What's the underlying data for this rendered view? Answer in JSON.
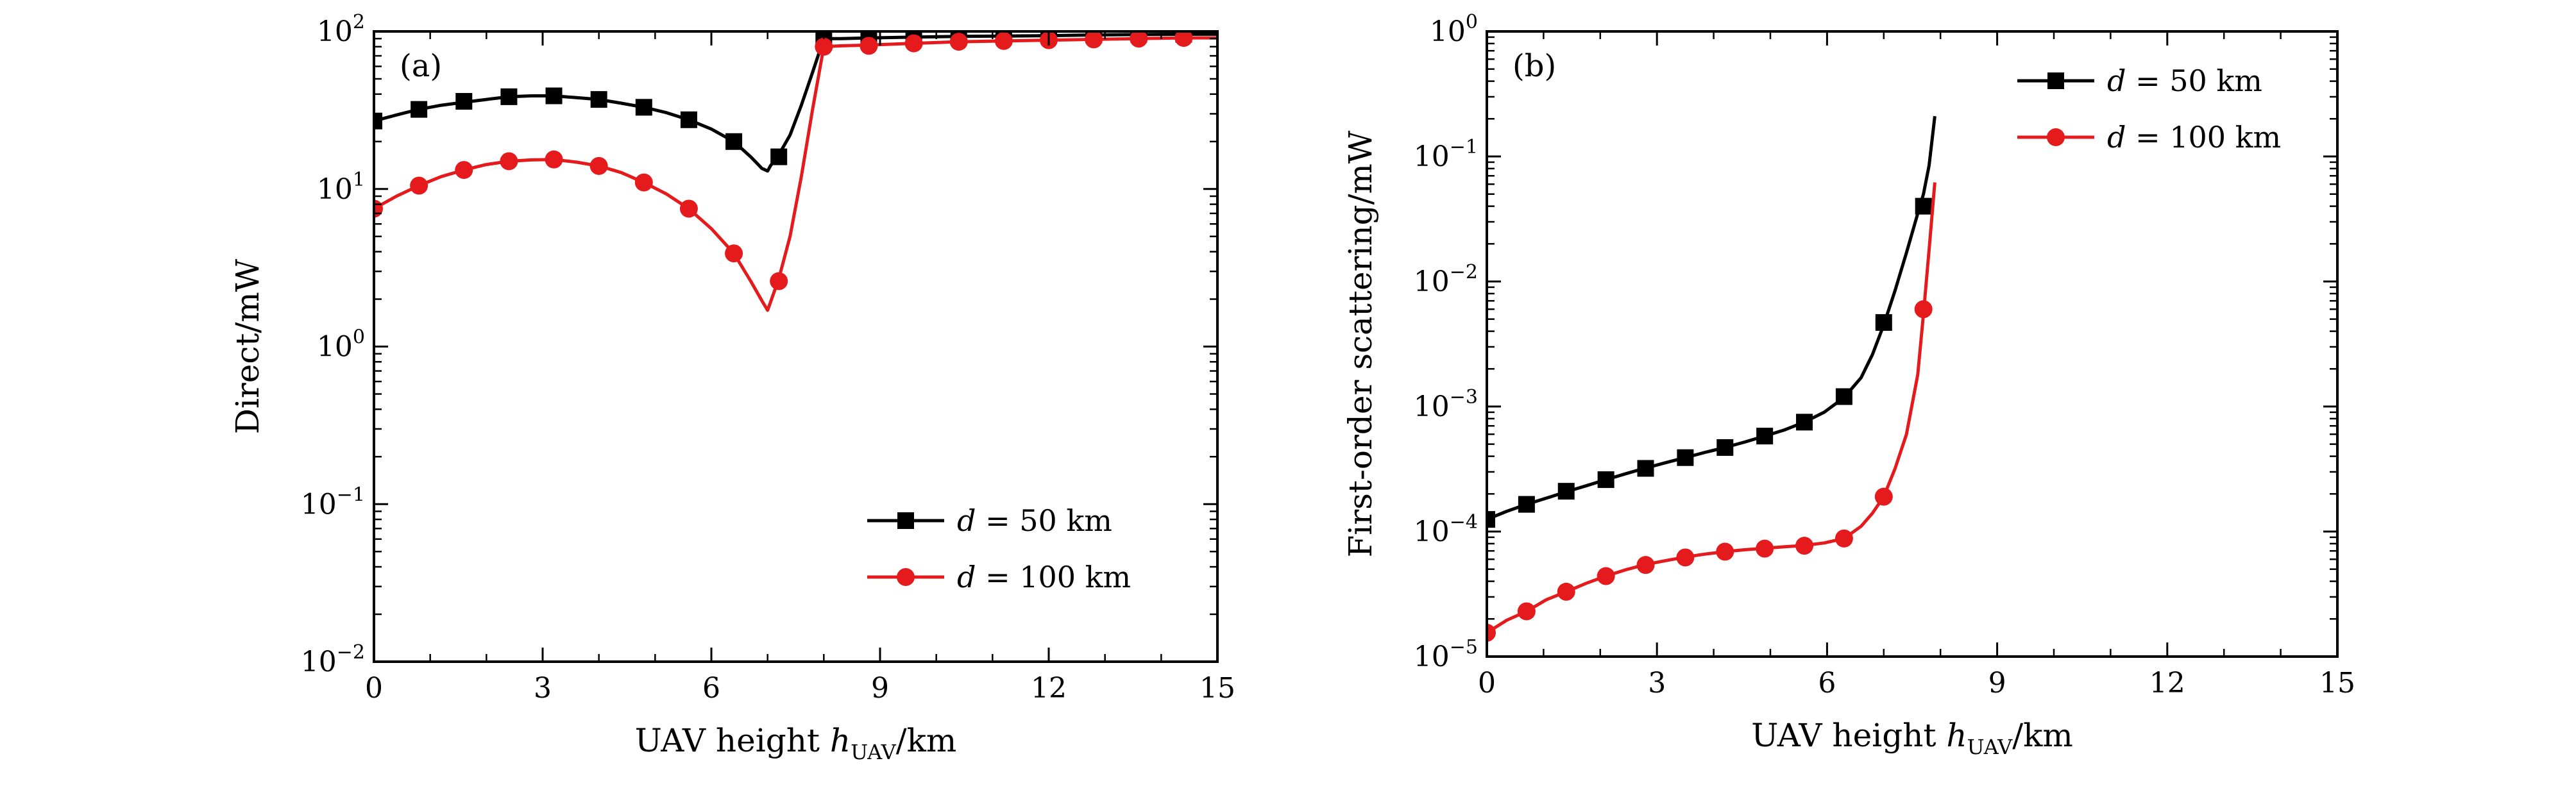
{
  "chart_data": [
    {
      "type": "line",
      "panel_label": "(a)",
      "xlabel": "UAV height h_UAV/km",
      "xlabel_parts": {
        "pre": "UAV height ",
        "var": "h",
        "sub": "UAV",
        "post": "/km"
      },
      "ylabel": "Direct/mW",
      "xlim": [
        0,
        15
      ],
      "ylim": [
        0.01,
        100
      ],
      "y_scale": "log",
      "grid": false,
      "legend_position": "lower-right",
      "x_ticks": [
        {
          "value": 0,
          "label": "0"
        },
        {
          "value": 3,
          "label": "3"
        },
        {
          "value": 6,
          "label": "6"
        },
        {
          "value": 9,
          "label": "9"
        },
        {
          "value": 12,
          "label": "12"
        },
        {
          "value": 15,
          "label": "15"
        }
      ],
      "y_ticks": [
        {
          "value": 0.01,
          "base": "10",
          "exp": "−2"
        },
        {
          "value": 0.1,
          "base": "10",
          "exp": "−1"
        },
        {
          "value": 1,
          "base": "10",
          "exp": "0"
        },
        {
          "value": 10,
          "base": "10",
          "exp": "1"
        },
        {
          "value": 100,
          "base": "10",
          "exp": "2"
        }
      ],
      "series": [
        {
          "name": "d = 50 km",
          "name_parts": {
            "var": "d",
            "rest": " = 50 km"
          },
          "color": "#000000",
          "marker": "square",
          "curve": [
            [
              0,
              27
            ],
            [
              0.4,
              29.5
            ],
            [
              0.8,
              32
            ],
            [
              1.2,
              34
            ],
            [
              1.6,
              35.5
            ],
            [
              2.0,
              37
            ],
            [
              2.4,
              38.5
            ],
            [
              2.8,
              39
            ],
            [
              3.2,
              39
            ],
            [
              3.6,
              38
            ],
            [
              4.0,
              37
            ],
            [
              4.4,
              35
            ],
            [
              4.8,
              33
            ],
            [
              5.2,
              30.5
            ],
            [
              5.6,
              27.5
            ],
            [
              6.0,
              24
            ],
            [
              6.4,
              20
            ],
            [
              6.7,
              16
            ],
            [
              6.9,
              13.5
            ],
            [
              7.0,
              13
            ],
            [
              7.05,
              14
            ],
            [
              7.2,
              16.5
            ],
            [
              7.4,
              22
            ],
            [
              7.6,
              34
            ],
            [
              7.8,
              55
            ],
            [
              8.0,
              90
            ],
            [
              8.3,
              90
            ],
            [
              8.8,
              91
            ],
            [
              9.6,
              92
            ],
            [
              10.4,
              93
            ],
            [
              11.2,
              93.5
            ],
            [
              12.0,
              94
            ],
            [
              12.8,
              95
            ],
            [
              13.6,
              95.5
            ],
            [
              14.4,
              96
            ],
            [
              15,
              96
            ]
          ],
          "markers": [
            [
              0,
              27
            ],
            [
              0.8,
              32
            ],
            [
              1.6,
              36
            ],
            [
              2.4,
              38.5
            ],
            [
              3.2,
              39
            ],
            [
              4.0,
              37
            ],
            [
              4.8,
              33
            ],
            [
              5.6,
              27.5
            ],
            [
              6.4,
              20
            ],
            [
              7.2,
              16
            ],
            [
              8.0,
              88
            ],
            [
              8.8,
              90
            ],
            [
              9.6,
              92
            ],
            [
              10.4,
              93
            ],
            [
              11.2,
              94
            ],
            [
              12.0,
              95
            ],
            [
              12.8,
              95
            ],
            [
              13.6,
              96
            ],
            [
              14.4,
              96
            ]
          ]
        },
        {
          "name": "d = 100 km",
          "name_parts": {
            "var": "d",
            "rest": " = 100 km"
          },
          "color": "#e41a1c",
          "marker": "circle",
          "curve": [
            [
              0,
              7.5
            ],
            [
              0.4,
              9
            ],
            [
              0.8,
              10.5
            ],
            [
              1.2,
              12
            ],
            [
              1.6,
              13.2
            ],
            [
              2.0,
              14.3
            ],
            [
              2.4,
              15
            ],
            [
              2.8,
              15.3
            ],
            [
              3.2,
              15.4
            ],
            [
              3.6,
              14.8
            ],
            [
              4.0,
              14
            ],
            [
              4.4,
              12.7
            ],
            [
              4.8,
              11
            ],
            [
              5.2,
              9.3
            ],
            [
              5.6,
              7.5
            ],
            [
              6.0,
              5.6
            ],
            [
              6.4,
              3.9
            ],
            [
              6.7,
              2.6
            ],
            [
              6.9,
              1.95
            ],
            [
              7.0,
              1.7
            ],
            [
              7.05,
              1.9
            ],
            [
              7.2,
              2.7
            ],
            [
              7.4,
              5
            ],
            [
              7.6,
              12
            ],
            [
              7.8,
              32
            ],
            [
              8.0,
              80
            ],
            [
              8.3,
              81
            ],
            [
              8.8,
              82
            ],
            [
              9.6,
              84
            ],
            [
              10.4,
              86
            ],
            [
              11.2,
              87
            ],
            [
              12.0,
              88
            ],
            [
              12.8,
              89
            ],
            [
              13.6,
              90
            ],
            [
              14.4,
              91
            ],
            [
              15,
              91
            ]
          ],
          "markers": [
            [
              0,
              7.5
            ],
            [
              0.8,
              10.5
            ],
            [
              1.6,
              13.2
            ],
            [
              2.4,
              15
            ],
            [
              3.2,
              15.4
            ],
            [
              4.0,
              14
            ],
            [
              4.8,
              11
            ],
            [
              5.6,
              7.5
            ],
            [
              6.4,
              3.9
            ],
            [
              7.2,
              2.6
            ],
            [
              8.0,
              80
            ],
            [
              8.8,
              81
            ],
            [
              9.6,
              84
            ],
            [
              10.4,
              86
            ],
            [
              11.2,
              87
            ],
            [
              12.0,
              88
            ],
            [
              12.8,
              89
            ],
            [
              13.6,
              90
            ],
            [
              14.4,
              91
            ]
          ]
        }
      ]
    },
    {
      "type": "line",
      "panel_label": "(b)",
      "xlabel": "UAV height h_UAV/km",
      "xlabel_parts": {
        "pre": "UAV height ",
        "var": "h",
        "sub": "UAV",
        "post": "/km"
      },
      "ylabel": "First-order scattering/mW",
      "xlim": [
        0,
        15
      ],
      "ylim": [
        1e-05,
        1
      ],
      "y_scale": "log",
      "grid": false,
      "legend_position": "upper-right",
      "x_ticks": [
        {
          "value": 0,
          "label": "0"
        },
        {
          "value": 3,
          "label": "3"
        },
        {
          "value": 6,
          "label": "6"
        },
        {
          "value": 9,
          "label": "9"
        },
        {
          "value": 12,
          "label": "12"
        },
        {
          "value": 15,
          "label": "15"
        }
      ],
      "y_ticks": [
        {
          "value": 1e-05,
          "base": "10",
          "exp": "−5"
        },
        {
          "value": 0.0001,
          "base": "10",
          "exp": "−4"
        },
        {
          "value": 0.001,
          "base": "10",
          "exp": "−3"
        },
        {
          "value": 0.01,
          "base": "10",
          "exp": "−2"
        },
        {
          "value": 0.1,
          "base": "10",
          "exp": "−1"
        },
        {
          "value": 1,
          "base": "10",
          "exp": "0"
        }
      ],
      "series": [
        {
          "name": "d = 50 km",
          "name_parts": {
            "var": "d",
            "rest": " = 50 km"
          },
          "color": "#000000",
          "marker": "square",
          "curve": [
            [
              0,
              0.000125
            ],
            [
              0.35,
              0.000145
            ],
            [
              0.7,
              0.000165
            ],
            [
              1.05,
              0.000185
            ],
            [
              1.4,
              0.000208
            ],
            [
              1.75,
              0.000232
            ],
            [
              2.1,
              0.00026
            ],
            [
              2.45,
              0.00029
            ],
            [
              2.8,
              0.000322
            ],
            [
              3.15,
              0.000355
            ],
            [
              3.5,
              0.00039
            ],
            [
              3.85,
              0.00043
            ],
            [
              4.2,
              0.00047
            ],
            [
              4.55,
              0.00052
            ],
            [
              4.9,
              0.00058
            ],
            [
              5.25,
              0.00065
            ],
            [
              5.6,
              0.00075
            ],
            [
              5.95,
              0.0009
            ],
            [
              6.3,
              0.00118
            ],
            [
              6.6,
              0.0017
            ],
            [
              6.8,
              0.0026
            ],
            [
              7.0,
              0.0045
            ],
            [
              7.2,
              0.0085
            ],
            [
              7.4,
              0.017
            ],
            [
              7.6,
              0.035
            ],
            [
              7.7,
              0.05
            ],
            [
              7.8,
              0.085
            ],
            [
              7.9,
              0.21
            ]
          ],
          "markers": [
            [
              0,
              0.000125
            ],
            [
              0.7,
              0.000165
            ],
            [
              1.4,
              0.00021
            ],
            [
              2.1,
              0.00026
            ],
            [
              2.8,
              0.00032
            ],
            [
              3.5,
              0.00039
            ],
            [
              4.2,
              0.00047
            ],
            [
              4.9,
              0.00058
            ],
            [
              5.6,
              0.00075
            ],
            [
              6.3,
              0.0012
            ],
            [
              7.0,
              0.0047
            ],
            [
              7.7,
              0.04
            ]
          ]
        },
        {
          "name": "d = 100 km",
          "name_parts": {
            "var": "d",
            "rest": " = 100 km"
          },
          "color": "#e41a1c",
          "marker": "circle",
          "curve": [
            [
              0,
              1.55e-05
            ],
            [
              0.35,
              1.95e-05
            ],
            [
              0.7,
              2.3e-05
            ],
            [
              1.05,
              2.85e-05
            ],
            [
              1.4,
              3.3e-05
            ],
            [
              1.75,
              3.85e-05
            ],
            [
              2.1,
              4.4e-05
            ],
            [
              2.45,
              4.95e-05
            ],
            [
              2.8,
              5.45e-05
            ],
            [
              3.15,
              5.85e-05
            ],
            [
              3.5,
              6.25e-05
            ],
            [
              3.85,
              6.6e-05
            ],
            [
              4.2,
              6.9e-05
            ],
            [
              4.55,
              7.15e-05
            ],
            [
              4.9,
              7.35e-05
            ],
            [
              5.25,
              7.55e-05
            ],
            [
              5.6,
              7.75e-05
            ],
            [
              5.95,
              8.1e-05
            ],
            [
              6.3,
              8.8e-05
            ],
            [
              6.6,
              0.00011
            ],
            [
              6.8,
              0.00014
            ],
            [
              7.0,
              0.00019
            ],
            [
              7.2,
              0.00032
            ],
            [
              7.4,
              0.0006
            ],
            [
              7.6,
              0.0018
            ],
            [
              7.7,
              0.0055
            ],
            [
              7.8,
              0.018
            ],
            [
              7.9,
              0.062
            ]
          ],
          "markers": [
            [
              0,
              1.55e-05
            ],
            [
              0.7,
              2.3e-05
            ],
            [
              1.4,
              3.3e-05
            ],
            [
              2.1,
              4.4e-05
            ],
            [
              2.8,
              5.4e-05
            ],
            [
              3.5,
              6.2e-05
            ],
            [
              4.2,
              6.9e-05
            ],
            [
              4.9,
              7.3e-05
            ],
            [
              5.6,
              7.7e-05
            ],
            [
              6.3,
              8.8e-05
            ],
            [
              7.0,
              0.00019
            ],
            [
              7.7,
              0.006
            ]
          ]
        }
      ]
    }
  ]
}
